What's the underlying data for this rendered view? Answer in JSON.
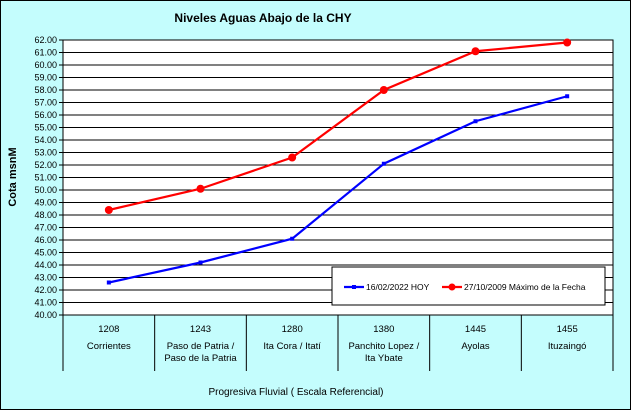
{
  "chart_data": {
    "type": "line",
    "title": "Niveles Aguas Abajo de la CHY",
    "xlabel": "Progresiva Fluvial ( Escala Referencial)",
    "ylabel": "Cota msnM",
    "ylim": [
      40,
      62
    ],
    "ytick_step": 1,
    "grid": true,
    "legend_position": "bottom-right",
    "categories": [
      {
        "code": "1208",
        "name": [
          "Corrientes"
        ]
      },
      {
        "code": "1243",
        "name": [
          "Paso de Patria /",
          "Paso de la Patria"
        ]
      },
      {
        "code": "1280",
        "name": [
          "Ita Cora / Itatí"
        ]
      },
      {
        "code": "1380",
        "name": [
          "Panchito Lopez /",
          "Ita Ybate"
        ]
      },
      {
        "code": "1445",
        "name": [
          "Ayolas"
        ]
      },
      {
        "code": "1455",
        "name": [
          "Ituzaingó"
        ]
      }
    ],
    "series": [
      {
        "name": "16/02/2022 HOY",
        "color": "#0000ff",
        "marker": "small",
        "values": [
          42.6,
          44.2,
          46.1,
          52.1,
          55.5,
          57.5
        ]
      },
      {
        "name": "27/10/2009 Máximo de la Fecha",
        "color": "#ff0000",
        "marker": "large",
        "values": [
          48.4,
          50.1,
          52.6,
          58.0,
          61.1,
          61.8
        ]
      }
    ]
  }
}
